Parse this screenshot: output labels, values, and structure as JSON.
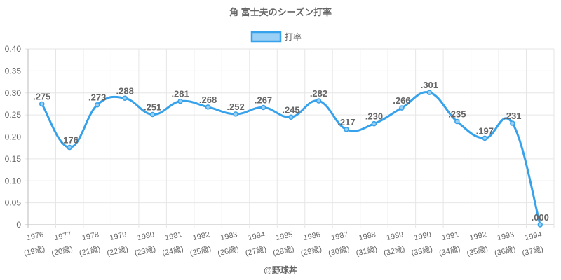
{
  "chart_data": {
    "type": "line",
    "title": "角 富士夫のシーズン打率",
    "legend": {
      "label": "打率",
      "placement": "top-center"
    },
    "categories": [
      "1976",
      "1977",
      "1978",
      "1979",
      "1980",
      "1981",
      "1982",
      "1983",
      "1984",
      "1985",
      "1986",
      "1987",
      "1988",
      "1989",
      "1990",
      "1991",
      "1992",
      "1993",
      "1994"
    ],
    "sublabels": [
      "(19歳)",
      "(20歳)",
      "(21歳)",
      "(22歳)",
      "(23歳)",
      "(24歳)",
      "(25歳)",
      "(26歳)",
      "(27歳)",
      "(28歳)",
      "(29歳)",
      "(30歳)",
      "(31歳)",
      "(32歳)",
      "(33歳)",
      "(34歳)",
      "(35歳)",
      "(36歳)",
      "(37歳)"
    ],
    "series": [
      {
        "name": "打率",
        "values": [
          0.275,
          0.176,
          0.273,
          0.288,
          0.251,
          0.281,
          0.268,
          0.252,
          0.267,
          0.245,
          0.282,
          0.217,
          0.23,
          0.266,
          0.301,
          0.235,
          0.197,
          0.231,
          0.0
        ]
      }
    ],
    "data_labels": [
      ".275",
      ".176",
      ".273",
      ".288",
      ".251",
      ".281",
      ".268",
      ".252",
      ".267",
      ".245",
      ".282",
      ".217",
      ".230",
      ".266",
      ".301",
      ".235",
      ".197",
      ".231",
      ".000"
    ],
    "yticks": [
      "0",
      "0.05",
      "0.10",
      "0.15",
      "0.20",
      "0.25",
      "0.30",
      "0.35",
      "0.40"
    ],
    "ylim": [
      0,
      0.4
    ],
    "grid": true,
    "line_color": "#36a2eb",
    "fill_color": "#9ad0f5"
  },
  "footer": "@野球丼"
}
